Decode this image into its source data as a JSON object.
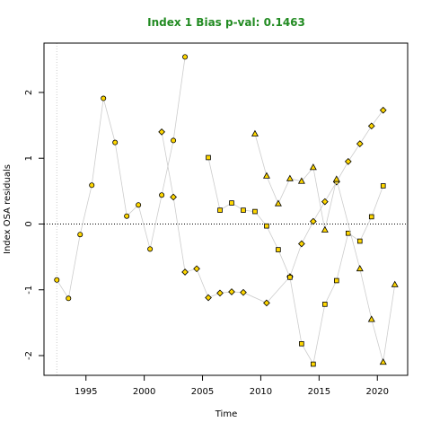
{
  "chart_data": {
    "type": "scatter",
    "title": "Index 1 Bias p-val: 0.1463",
    "title_color": "#228B22",
    "xlabel": "Time",
    "ylabel": "Index OSA residuals",
    "xlim": [
      1991.4,
      2022.6
    ],
    "ylim": [
      -2.3,
      2.75
    ],
    "x_ticks": [
      1995,
      2000,
      2005,
      2010,
      2015,
      2020
    ],
    "y_ticks": [
      -2,
      -1,
      0,
      1,
      2
    ],
    "reference_line_y": 0,
    "vline_x": 1992.5,
    "point_fill": "#FFD700",
    "line_color": "#cccccc",
    "series": [
      {
        "marker": "circle",
        "x": [
          1992.5,
          1993.5,
          1994.5,
          1995.5,
          1996.5,
          1997.5,
          1998.5,
          1999.5,
          2000.5,
          2001.5,
          2002.5,
          2003.5
        ],
        "y": [
          -0.85,
          -1.13,
          -0.16,
          0.59,
          1.91,
          1.24,
          0.12,
          0.29,
          -0.38,
          0.44,
          1.27,
          2.54
        ]
      },
      {
        "marker": "diamond",
        "x": [
          2001.5,
          2002.5,
          2003.5,
          2004.5,
          2005.5,
          2006.5,
          2007.5,
          2008.5,
          2010.5,
          2012.5,
          2013.5,
          2014.5,
          2015.5,
          2016.5,
          2017.5,
          2018.5,
          2019.5,
          2020.5
        ],
        "y": [
          1.4,
          0.41,
          -0.73,
          -0.68,
          -1.12,
          -1.05,
          -1.03,
          -1.04,
          -1.2,
          -0.8,
          -0.3,
          0.04,
          0.34,
          0.64,
          0.95,
          1.22,
          1.49,
          1.73
        ]
      },
      {
        "marker": "square",
        "x": [
          2005.5,
          2006.5,
          2007.5,
          2008.5,
          2009.5,
          2010.5,
          2011.5,
          2012.5,
          2013.5,
          2014.5,
          2015.5,
          2016.5,
          2017.5,
          2018.5,
          2019.5,
          2020.5
        ],
        "y": [
          1.01,
          0.21,
          0.32,
          0.21,
          0.19,
          -0.03,
          -0.39,
          -0.81,
          -1.82,
          -2.13,
          -1.22,
          -0.86,
          -0.14,
          -0.26,
          0.11,
          0.58
        ]
      },
      {
        "marker": "triangle",
        "x": [
          2009.5,
          2010.5,
          2011.5,
          2012.5,
          2013.5,
          2014.5,
          2015.5,
          2016.5,
          2018.5,
          2019.5,
          2020.5,
          2021.5
        ],
        "y": [
          1.37,
          0.73,
          0.31,
          0.69,
          0.65,
          0.86,
          -0.09,
          0.68,
          -0.68,
          -1.45,
          -2.1,
          -0.92
        ]
      }
    ]
  }
}
